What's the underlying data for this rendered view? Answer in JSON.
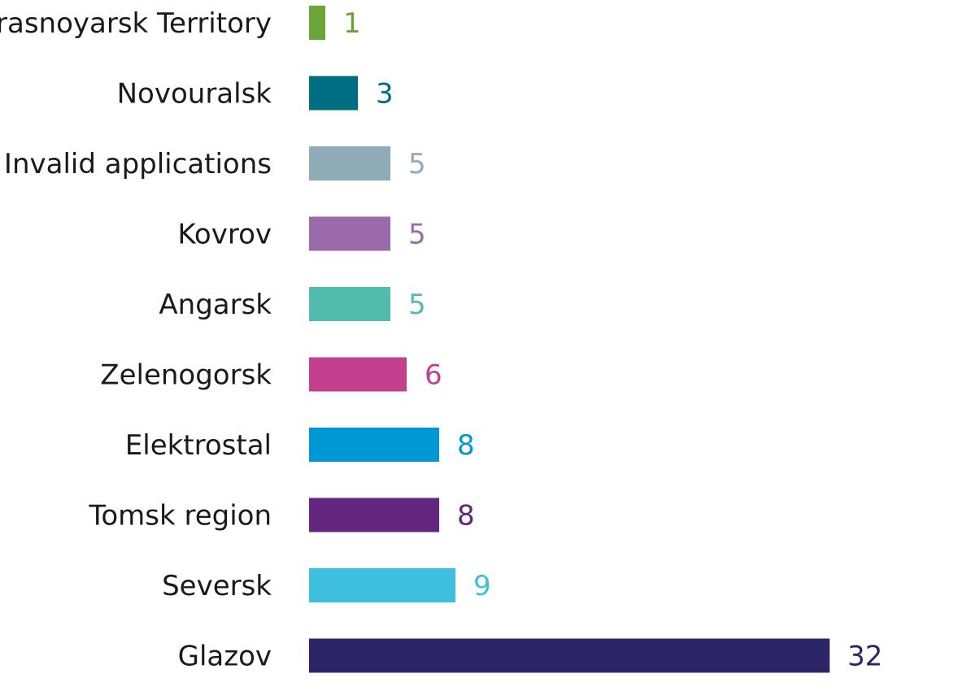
{
  "chart_data": {
    "type": "bar",
    "orientation": "horizontal",
    "title": "",
    "xlabel": "",
    "ylabel": "",
    "xlim": [
      0,
      32
    ],
    "grid": false,
    "legend": "none",
    "categories": [
      "Krasnoyarsk Territory",
      "Novouralsk",
      "Invalid applications",
      "Kovrov",
      "Angarsk",
      "Zelenogorsk",
      "Elektrostal",
      "Tomsk region",
      "Seversk",
      "Glazov"
    ],
    "values": [
      1,
      3,
      5,
      5,
      5,
      6,
      8,
      8,
      9,
      32
    ],
    "colors": [
      "#6ba539",
      "#006e82",
      "#8fabb5",
      "#9b6aab",
      "#52bcac",
      "#c4408f",
      "#0098d4",
      "#62267f",
      "#3dbfdf",
      "#2b2466"
    ]
  }
}
